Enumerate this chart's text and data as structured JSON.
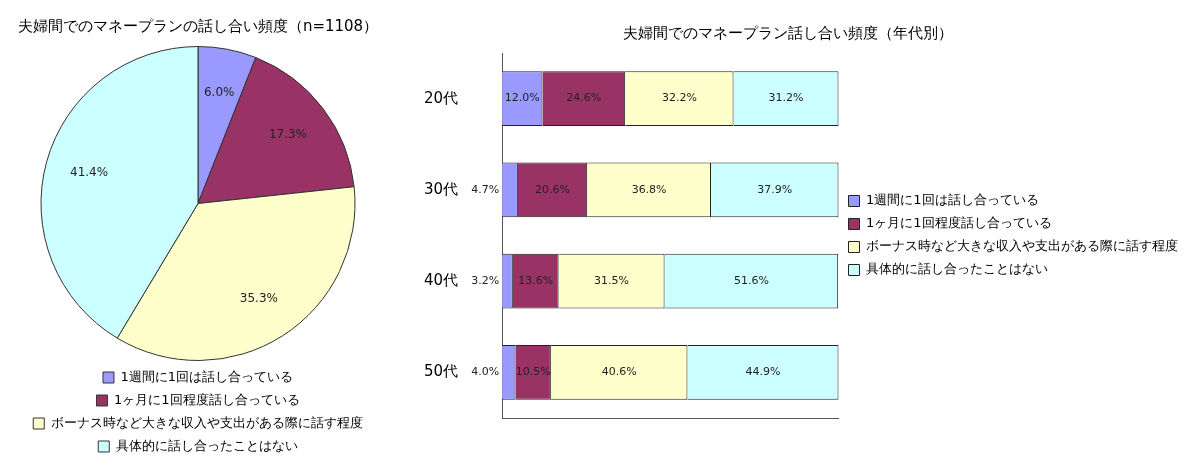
{
  "chart_data": [
    {
      "type": "pie",
      "title": "夫婦間でのマネープランの話し合い頻度（n=1108）",
      "categories": [
        "1週間に1回は話し合っている",
        "1ヶ月に1回程度話し合っている",
        "ボーナス時など大きな収入や支出がある際に話す程度",
        "具体的に話し合ったことはない"
      ],
      "values": [
        6.0,
        17.3,
        35.3,
        41.4
      ],
      "value_labels": [
        "6.0%",
        "17.3%",
        "35.3%",
        "41.4%"
      ],
      "colors": [
        "#9999ff",
        "#993366",
        "#ffffcc",
        "#ccffff"
      ],
      "legend": "bottom"
    },
    {
      "type": "bar",
      "title": "夫婦間でのマネープラン話し合い頻度（年代別）",
      "orientation": "horizontal",
      "stacked": true,
      "categories": [
        "20代",
        "30代",
        "40代",
        "50代"
      ],
      "xlim": [
        0,
        100
      ],
      "tick_labels": "y",
      "legend": "right",
      "series": [
        {
          "name": "1週間に1回は話し合っている",
          "color": "#9999ff",
          "values": [
            12.0,
            4.7,
            3.2,
            4.0
          ],
          "value_labels": [
            "12.0%",
            "4.7%",
            "3.2%",
            "4.0%"
          ]
        },
        {
          "name": "1ヶ月に1回程度話し合っている",
          "color": "#993366",
          "values": [
            24.6,
            20.6,
            13.6,
            10.5
          ],
          "value_labels": [
            "24.6%",
            "20.6%",
            "13.6%",
            "10.5%"
          ]
        },
        {
          "name": "ボーナス時など大きな収入や支出がある際に話す程度",
          "color": "#ffffcc",
          "values": [
            32.2,
            36.8,
            31.5,
            40.6
          ],
          "value_labels": [
            "32.2%",
            "36.8%",
            "31.5%",
            "40.6%"
          ]
        },
        {
          "name": "具体的に話し合ったことはない",
          "color": "#ccffff",
          "values": [
            31.2,
            37.9,
            51.6,
            44.9
          ],
          "value_labels": [
            "31.2%",
            "37.9%",
            "51.6%",
            "44.9%"
          ]
        }
      ]
    }
  ]
}
